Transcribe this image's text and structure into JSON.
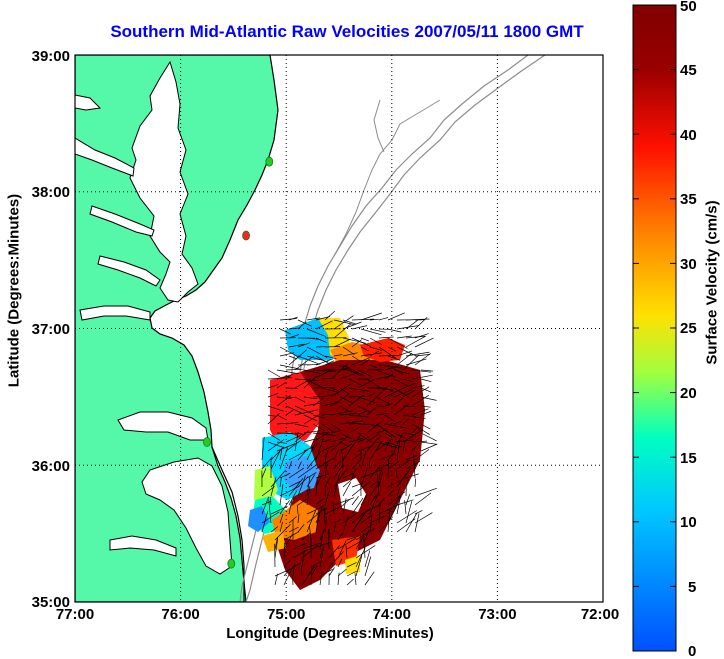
{
  "title": "Southern Mid-Atlantic Raw Velocities 2007/05/11 1800 GMT",
  "map": {
    "xlabel": "Longitude (Degrees:Minutes)",
    "ylabel": "Latitude (Degrees:Minutes)",
    "x_ticks": [
      "77:00",
      "76:00",
      "75:00",
      "74:00",
      "73:00",
      "72:00"
    ],
    "y_ticks": [
      "39:00",
      "38:00",
      "37:00",
      "36:00",
      "35:00"
    ],
    "lon_range": [
      -77,
      -72
    ],
    "lat_range": [
      35,
      39
    ],
    "grid": "dotted",
    "land_color": "#55f7a8",
    "coast_color": "#000000",
    "bathymetry_color": "#8c8c8c",
    "station_markers": [
      {
        "lon": -75.16,
        "lat": 38.22,
        "color": "#22cc22"
      },
      {
        "lon": -75.38,
        "lat": 37.68,
        "color": "#ff2020"
      },
      {
        "lon": -75.75,
        "lat": 36.17,
        "color": "#22cc22"
      },
      {
        "lon": -75.52,
        "lat": 35.28,
        "color": "#22cc22"
      }
    ]
  },
  "colorbar": {
    "label": "Surface Velocity (cm/s)",
    "min": 0,
    "max": 50,
    "ticks": [
      "50",
      "45",
      "40",
      "35",
      "30",
      "25",
      "20",
      "15",
      "10",
      "5",
      "0"
    ],
    "colormap": "jet",
    "colors": [
      "#0050ff",
      "#00c8ff",
      "#00ffc0",
      "#a0ff40",
      "#ffe000",
      "#ff8000",
      "#ff1000",
      "#9a0000",
      "#800000"
    ]
  }
}
